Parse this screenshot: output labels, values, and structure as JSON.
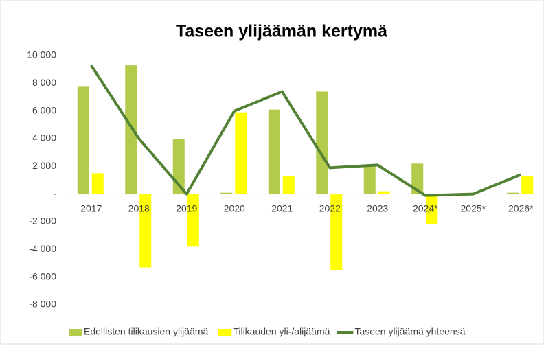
{
  "chart_data": {
    "type": "bar_line",
    "title": "Taseen ylijäämän kertymä",
    "categories": [
      "2017",
      "2018",
      "2019",
      "2020",
      "2021",
      "2022",
      "2023",
      "2024*",
      "2025*",
      "2026*"
    ],
    "series": [
      {
        "name": "Edellisten tilikausien ylijäämä",
        "kind": "bar",
        "color": "#b2cb4a",
        "values": [
          7800,
          9300,
          4000,
          100,
          6100,
          7400,
          2100,
          2200,
          0,
          100
        ]
      },
      {
        "name": "Tilikauden yli-/alijäämä",
        "kind": "bar",
        "color": "#ffff00",
        "values": [
          1500,
          -5300,
          -3800,
          5900,
          1300,
          -5500,
          200,
          -2200,
          0,
          1300
        ]
      },
      {
        "name": "Taseen ylijäämä yhteensä",
        "kind": "line",
        "color": "#548235",
        "values": [
          9300,
          4000,
          0,
          6000,
          7400,
          1900,
          2100,
          -100,
          0,
          1400
        ]
      }
    ],
    "ylim": [
      -8000,
      10000
    ],
    "yticks": [
      {
        "value": -8000,
        "label": "-8 000"
      },
      {
        "value": -6000,
        "label": "-6 000"
      },
      {
        "value": -4000,
        "label": "-4 000"
      },
      {
        "value": -2000,
        "label": "-2 000"
      },
      {
        "value": 0,
        "label": "-"
      },
      {
        "value": 2000,
        "label": "2 000"
      },
      {
        "value": 4000,
        "label": "4 000"
      },
      {
        "value": 6000,
        "label": "6 000"
      },
      {
        "value": 8000,
        "label": "8 000"
      },
      {
        "value": 10000,
        "label": "10 000"
      }
    ],
    "grid": false,
    "legend": "bottom"
  }
}
